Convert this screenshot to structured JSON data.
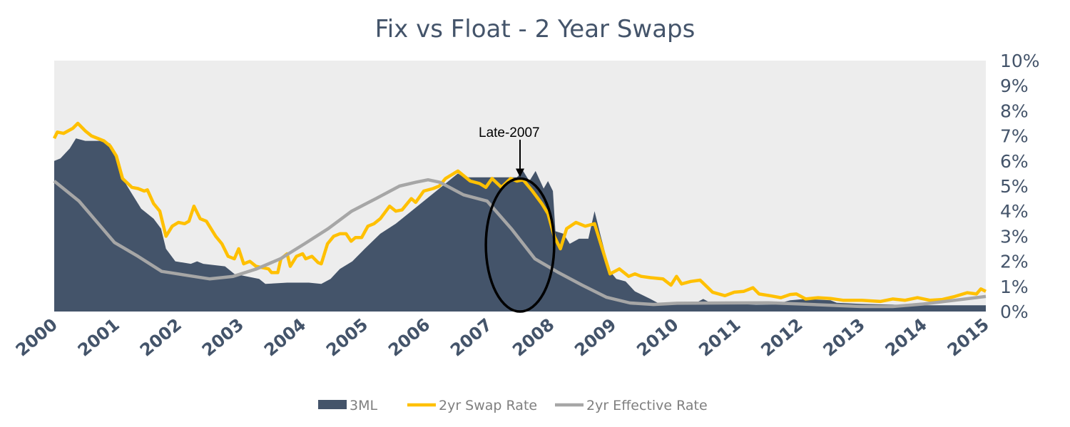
{
  "chart_data": {
    "type": "area+line",
    "title": "Fix vs Float - 2 Year Swaps",
    "xlabel": "",
    "ylabel": "",
    "xlim": [
      2000,
      2015
    ],
    "ylim": [
      0,
      10
    ],
    "x_ticks": [
      "2000",
      "2001",
      "2002",
      "2003",
      "2004",
      "2005",
      "2006",
      "2007",
      "2008",
      "2009",
      "2010",
      "2011",
      "2012",
      "2013",
      "2014",
      "2015"
    ],
    "y_ticks": [
      "0%",
      "1%",
      "2%",
      "3%",
      "4%",
      "5%",
      "6%",
      "7%",
      "8%",
      "9%",
      "10%"
    ],
    "y_axis_side": "right",
    "grid": false,
    "legend_position": "bottom",
    "plot_background": "#ededed",
    "series": [
      {
        "name": "3ML",
        "kind": "area",
        "color": "#44546a",
        "points": [
          [
            2000,
            6.0
          ],
          [
            2000.1,
            6.1
          ],
          [
            2000.25,
            6.5
          ],
          [
            2000.35,
            6.9
          ],
          [
            2000.5,
            6.8
          ],
          [
            2000.75,
            6.8
          ],
          [
            2000.9,
            6.7
          ],
          [
            2001.0,
            6.1
          ],
          [
            2001.1,
            5.3
          ],
          [
            2001.25,
            4.7
          ],
          [
            2001.4,
            4.1
          ],
          [
            2001.6,
            3.7
          ],
          [
            2001.72,
            3.3
          ],
          [
            2001.8,
            2.5
          ],
          [
            2001.95,
            2.0
          ],
          [
            2002.2,
            1.9
          ],
          [
            2002.3,
            2.0
          ],
          [
            2002.4,
            1.9
          ],
          [
            2002.75,
            1.8
          ],
          [
            2002.9,
            1.5
          ],
          [
            2003.1,
            1.4
          ],
          [
            2003.3,
            1.3
          ],
          [
            2003.4,
            1.1
          ],
          [
            2003.75,
            1.15
          ],
          [
            2004.1,
            1.15
          ],
          [
            2004.3,
            1.1
          ],
          [
            2004.45,
            1.3
          ],
          [
            2004.6,
            1.7
          ],
          [
            2004.8,
            2.0
          ],
          [
            2005.0,
            2.5
          ],
          [
            2005.25,
            3.1
          ],
          [
            2005.5,
            3.5
          ],
          [
            2005.75,
            4.0
          ],
          [
            2006.0,
            4.5
          ],
          [
            2006.25,
            5.0
          ],
          [
            2006.5,
            5.5
          ],
          [
            2006.6,
            5.35
          ],
          [
            2007.45,
            5.35
          ],
          [
            2007.55,
            5.6
          ],
          [
            2007.65,
            5.2
          ],
          [
            2007.75,
            5.6
          ],
          [
            2007.88,
            4.9
          ],
          [
            2007.95,
            5.2
          ],
          [
            2008.03,
            4.8
          ],
          [
            2008.07,
            3.2
          ],
          [
            2008.2,
            3.1
          ],
          [
            2008.3,
            2.7
          ],
          [
            2008.45,
            2.9
          ],
          [
            2008.6,
            2.9
          ],
          [
            2008.7,
            4.0
          ],
          [
            2008.8,
            3.0
          ],
          [
            2008.95,
            1.6
          ],
          [
            2009.05,
            1.3
          ],
          [
            2009.2,
            1.2
          ],
          [
            2009.35,
            0.8
          ],
          [
            2009.6,
            0.5
          ],
          [
            2009.75,
            0.3
          ],
          [
            2010.0,
            0.27
          ],
          [
            2010.3,
            0.3
          ],
          [
            2010.45,
            0.5
          ],
          [
            2010.6,
            0.3
          ],
          [
            2011.0,
            0.3
          ],
          [
            2011.3,
            0.27
          ],
          [
            2011.6,
            0.28
          ],
          [
            2011.85,
            0.45
          ],
          [
            2012.1,
            0.5
          ],
          [
            2012.5,
            0.45
          ],
          [
            2012.6,
            0.35
          ],
          [
            2013.0,
            0.3
          ],
          [
            2014.0,
            0.25
          ],
          [
            2015.0,
            0.25
          ]
        ]
      },
      {
        "name": "2yr Swap Rate",
        "kind": "line",
        "color": "#ffc000",
        "points": [
          [
            2000,
            6.9
          ],
          [
            2000.05,
            7.15
          ],
          [
            2000.15,
            7.1
          ],
          [
            2000.3,
            7.3
          ],
          [
            2000.38,
            7.5
          ],
          [
            2000.5,
            7.2
          ],
          [
            2000.6,
            7.0
          ],
          [
            2000.8,
            6.8
          ],
          [
            2000.9,
            6.6
          ],
          [
            2001.0,
            6.2
          ],
          [
            2001.1,
            5.3
          ],
          [
            2001.25,
            4.95
          ],
          [
            2001.35,
            4.9
          ],
          [
            2001.45,
            4.8
          ],
          [
            2001.5,
            4.85
          ],
          [
            2001.6,
            4.3
          ],
          [
            2001.7,
            4.0
          ],
          [
            2001.8,
            3.0
          ],
          [
            2001.9,
            3.4
          ],
          [
            2002.0,
            3.55
          ],
          [
            2002.1,
            3.5
          ],
          [
            2002.17,
            3.6
          ],
          [
            2002.25,
            4.2
          ],
          [
            2002.35,
            3.7
          ],
          [
            2002.45,
            3.6
          ],
          [
            2002.6,
            3.0
          ],
          [
            2002.7,
            2.7
          ],
          [
            2002.8,
            2.2
          ],
          [
            2002.9,
            2.1
          ],
          [
            2002.97,
            2.5
          ],
          [
            2003.05,
            1.9
          ],
          [
            2003.15,
            2.0
          ],
          [
            2003.25,
            1.8
          ],
          [
            2003.45,
            1.7
          ],
          [
            2003.5,
            1.55
          ],
          [
            2003.6,
            1.55
          ],
          [
            2003.65,
            2.1
          ],
          [
            2003.75,
            2.3
          ],
          [
            2003.8,
            1.8
          ],
          [
            2003.9,
            2.2
          ],
          [
            2004.0,
            2.3
          ],
          [
            2004.05,
            2.1
          ],
          [
            2004.15,
            2.2
          ],
          [
            2004.25,
            1.95
          ],
          [
            2004.3,
            1.9
          ],
          [
            2004.4,
            2.7
          ],
          [
            2004.5,
            3.0
          ],
          [
            2004.6,
            3.1
          ],
          [
            2004.7,
            3.1
          ],
          [
            2004.78,
            2.8
          ],
          [
            2004.85,
            2.95
          ],
          [
            2004.95,
            2.95
          ],
          [
            2005.05,
            3.4
          ],
          [
            2005.15,
            3.5
          ],
          [
            2005.25,
            3.7
          ],
          [
            2005.4,
            4.2
          ],
          [
            2005.5,
            4.0
          ],
          [
            2005.6,
            4.05
          ],
          [
            2005.75,
            4.5
          ],
          [
            2005.82,
            4.35
          ],
          [
            2005.95,
            4.8
          ],
          [
            2006.1,
            4.9
          ],
          [
            2006.2,
            5.0
          ],
          [
            2006.3,
            5.3
          ],
          [
            2006.5,
            5.6
          ],
          [
            2006.7,
            5.2
          ],
          [
            2006.85,
            5.1
          ],
          [
            2006.95,
            4.95
          ],
          [
            2007.05,
            5.3
          ],
          [
            2007.2,
            4.95
          ],
          [
            2007.35,
            5.3
          ],
          [
            2007.45,
            5.2
          ],
          [
            2007.55,
            5.25
          ],
          [
            2007.7,
            4.8
          ],
          [
            2007.85,
            4.3
          ],
          [
            2007.95,
            3.9
          ],
          [
            2008.05,
            3.0
          ],
          [
            2008.15,
            2.5
          ],
          [
            2008.25,
            3.3
          ],
          [
            2008.4,
            3.55
          ],
          [
            2008.55,
            3.4
          ],
          [
            2008.7,
            3.5
          ],
          [
            2008.95,
            1.5
          ],
          [
            2009.1,
            1.7
          ],
          [
            2009.25,
            1.4
          ],
          [
            2009.35,
            1.5
          ],
          [
            2009.45,
            1.4
          ],
          [
            2009.6,
            1.35
          ],
          [
            2009.8,
            1.3
          ],
          [
            2009.93,
            1.05
          ],
          [
            2010.02,
            1.4
          ],
          [
            2010.1,
            1.1
          ],
          [
            2010.25,
            1.2
          ],
          [
            2010.4,
            1.25
          ],
          [
            2010.6,
            0.77
          ],
          [
            2010.8,
            0.63
          ],
          [
            2010.95,
            0.77
          ],
          [
            2011.1,
            0.8
          ],
          [
            2011.25,
            0.95
          ],
          [
            2011.35,
            0.7
          ],
          [
            2011.55,
            0.62
          ],
          [
            2011.7,
            0.55
          ],
          [
            2011.85,
            0.68
          ],
          [
            2011.95,
            0.7
          ],
          [
            2012.1,
            0.5
          ],
          [
            2012.3,
            0.55
          ],
          [
            2012.5,
            0.52
          ],
          [
            2012.7,
            0.45
          ],
          [
            2013.0,
            0.45
          ],
          [
            2013.3,
            0.4
          ],
          [
            2013.5,
            0.5
          ],
          [
            2013.7,
            0.45
          ],
          [
            2013.9,
            0.55
          ],
          [
            2014.1,
            0.45
          ],
          [
            2014.3,
            0.48
          ],
          [
            2014.5,
            0.6
          ],
          [
            2014.7,
            0.75
          ],
          [
            2014.85,
            0.7
          ],
          [
            2014.92,
            0.9
          ],
          [
            2015.0,
            0.8
          ]
        ]
      },
      {
        "name": "2yr Effective Rate",
        "kind": "line",
        "color": "#a6a6a6",
        "points": [
          [
            2000,
            5.2
          ],
          [
            2000.4,
            4.4
          ],
          [
            2000.97,
            2.75
          ],
          [
            2001.35,
            2.2
          ],
          [
            2001.73,
            1.6
          ],
          [
            2002.5,
            1.3
          ],
          [
            2002.88,
            1.4
          ],
          [
            2003.26,
            1.7
          ],
          [
            2003.64,
            2.1
          ],
          [
            2004.03,
            2.7
          ],
          [
            2004.41,
            3.3
          ],
          [
            2004.79,
            4.0
          ],
          [
            2005.18,
            4.5
          ],
          [
            2005.56,
            5.0
          ],
          [
            2005.82,
            5.15
          ],
          [
            2006.02,
            5.25
          ],
          [
            2006.21,
            5.15
          ],
          [
            2006.59,
            4.65
          ],
          [
            2006.97,
            4.4
          ],
          [
            2007.36,
            3.3
          ],
          [
            2007.74,
            2.1
          ],
          [
            2008.12,
            1.55
          ],
          [
            2008.5,
            1.05
          ],
          [
            2008.89,
            0.57
          ],
          [
            2009.27,
            0.34
          ],
          [
            2009.65,
            0.28
          ],
          [
            2010.03,
            0.33
          ],
          [
            2011.5,
            0.35
          ],
          [
            2012.0,
            0.3
          ],
          [
            2013.0,
            0.2
          ],
          [
            2013.5,
            0.2
          ],
          [
            2014.0,
            0.3
          ],
          [
            2014.5,
            0.45
          ],
          [
            2015.0,
            0.6
          ]
        ]
      }
    ],
    "annotation": {
      "text": "Late-2007",
      "x": 2007.5,
      "y": 5.3,
      "ellipse_x_range": [
        2006.95,
        2008.05
      ],
      "ellipse_y_range": [
        0,
        5.3
      ]
    }
  }
}
